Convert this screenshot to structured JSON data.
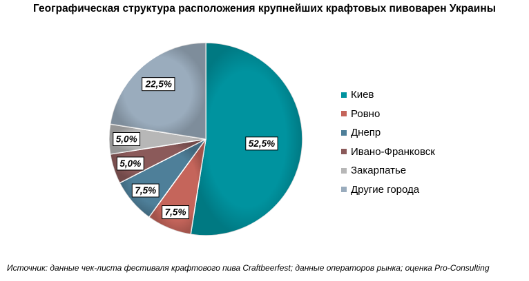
{
  "chart_data": {
    "type": "pie",
    "title": "Географическая структура расположения крупнейших крафтовых пивоварен Украины",
    "categories": [
      "Киев",
      "Ровно",
      "Днепр",
      "Ивано-Франковск",
      "Закарпатье",
      "Другие города"
    ],
    "values": [
      52.5,
      7.5,
      7.5,
      5.0,
      5.0,
      22.5
    ],
    "data_labels": [
      "52,5%",
      "7,5%",
      "7,5%",
      "5,0%",
      "5,0%",
      "22,5%"
    ],
    "colors": [
      "#00939f",
      "#c5655b",
      "#4e7f99",
      "#8b5a5a",
      "#b7b7b7",
      "#9aacbd"
    ],
    "legend_position": "right"
  },
  "source": "Источник: данные чек-листа фестиваля крафтового пива Craftbeerfest; данные операторов рынка; оценка Pro-Consulting"
}
